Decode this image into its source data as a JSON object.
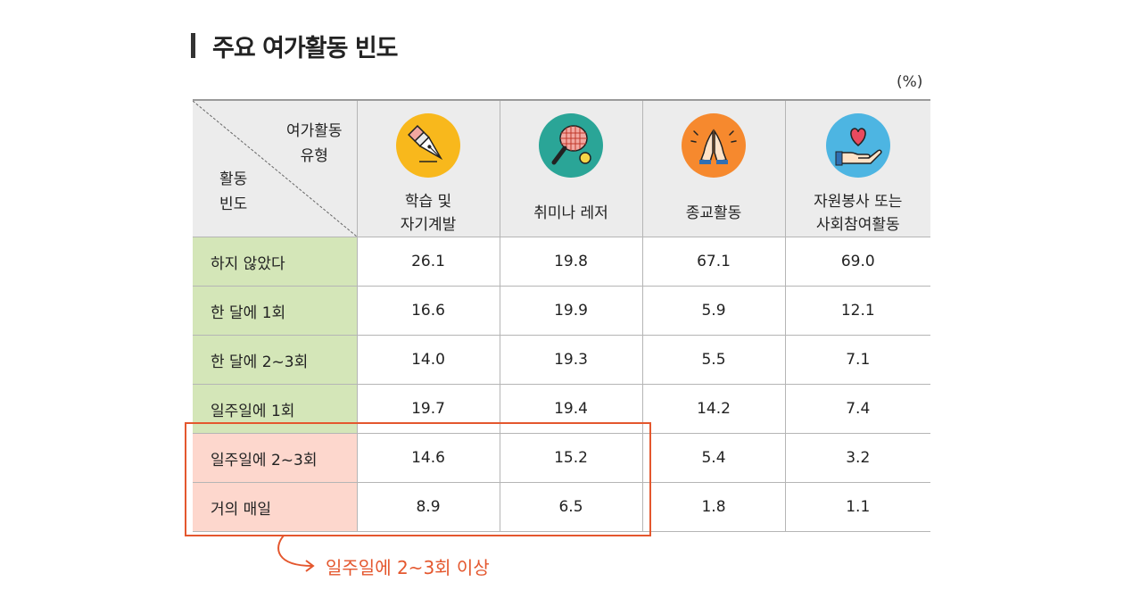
{
  "title": "주요 여가활동 빈도",
  "unit": "(%)",
  "corner": {
    "top_line1": "여가활동",
    "top_line2": "유형",
    "bottom_line1": "활동",
    "bottom_line2": "빈도"
  },
  "columns": [
    {
      "line1": "학습 및",
      "line2": "자기계발",
      "icon": "pen-nib-icon",
      "color": "#f8b81c"
    },
    {
      "line1": "취미나 레저",
      "line2": "",
      "icon": "tennis-racket-icon",
      "color": "#2aa597"
    },
    {
      "line1": "종교활동",
      "line2": "",
      "icon": "praying-hands-icon",
      "color": "#f6892e"
    },
    {
      "line1": "자원봉사 또는",
      "line2": "사회참여활동",
      "icon": "heart-in-hand-icon",
      "color": "#4db5e2"
    }
  ],
  "rows": [
    {
      "label": "하지 않았다",
      "values": [
        "26.1",
        "19.8",
        "67.1",
        "69.0"
      ]
    },
    {
      "label": "한 달에 1회",
      "values": [
        "16.6",
        "19.9",
        "5.9",
        "12.1"
      ]
    },
    {
      "label": "한 달에 2~3회",
      "values": [
        "14.0",
        "19.3",
        "5.5",
        "7.1"
      ]
    },
    {
      "label": "일주일에 1회",
      "values": [
        "19.7",
        "19.4",
        "14.2",
        "7.4"
      ]
    },
    {
      "label": "일주일에 2~3회",
      "values": [
        "14.6",
        "15.2",
        "5.4",
        "3.2"
      ]
    },
    {
      "label": "거의 매일",
      "values": [
        "8.9",
        "6.5",
        "1.8",
        "1.1"
      ]
    }
  ],
  "colors": {
    "label_green": "#d4e6b8",
    "label_pink": "#fdd7cd",
    "highlight": "#e4572e"
  },
  "annotation": "일주일에 2~3회 이상"
}
